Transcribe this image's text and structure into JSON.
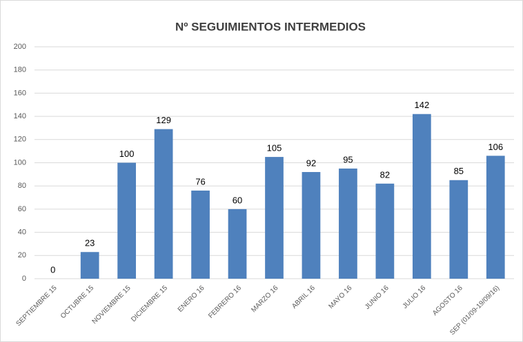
{
  "chart_data": {
    "type": "bar",
    "title": "Nº SEGUIMIENTOS INTERMEDIOS",
    "categories": [
      "SEPTIEMBRE 15",
      "OCTUBRE 15",
      "NOVIEMBRE 15",
      "DICIEMBRE 15",
      "ENERO 16",
      "FEBRERO 16",
      "MARZO 16",
      "ABRIL 16",
      "MAYO 16",
      "JUNIO 16",
      "JULIO 16",
      "AGOSTO 16",
      "SEP (01/09-19/09/16)"
    ],
    "values": [
      0,
      23,
      100,
      129,
      76,
      60,
      105,
      92,
      95,
      82,
      142,
      85,
      106
    ],
    "color": "#4f81bd",
    "ylim": [
      0,
      200
    ],
    "yticks": [
      0,
      20,
      40,
      60,
      80,
      100,
      120,
      140,
      160,
      180,
      200
    ],
    "grid": true
  }
}
